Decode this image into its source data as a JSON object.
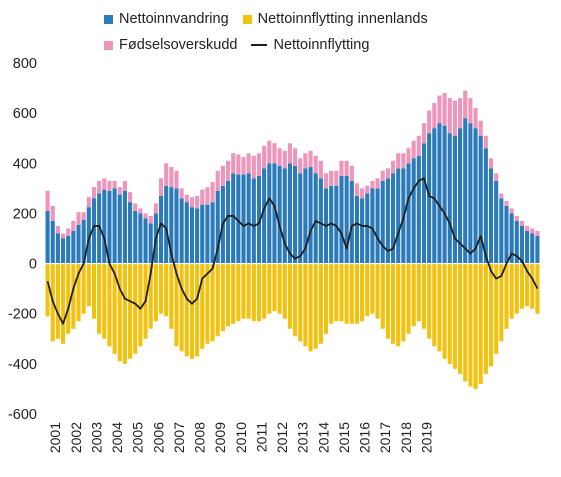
{
  "chart_data": {
    "type": "bar",
    "stacked": true,
    "x_axis_labels": [
      "2001",
      "2002",
      "2003",
      "2004",
      "2005",
      "2006",
      "2007",
      "2008",
      "2009",
      "2010",
      "2011",
      "2012",
      "2013",
      "2014",
      "2015",
      "2016",
      "2017",
      "2018",
      "2019"
    ],
    "x_start_year": 2001,
    "periods_per_year": 4,
    "ylim": [
      -600,
      800
    ],
    "yticks": [
      -600,
      -400,
      -200,
      0,
      200,
      400,
      600,
      800
    ],
    "grid": false,
    "legend_placement": "top",
    "series": [
      {
        "name": "Nettoinnvandring",
        "color": "#2b7bba",
        "type": "bar",
        "values": [
          210,
          170,
          120,
          100,
          110,
          130,
          155,
          175,
          225,
          260,
          280,
          295,
          290,
          300,
          275,
          290,
          245,
          210,
          200,
          180,
          160,
          200,
          270,
          310,
          305,
          300,
          260,
          245,
          225,
          220,
          235,
          235,
          245,
          290,
          310,
          330,
          360,
          355,
          355,
          360,
          340,
          350,
          380,
          400,
          400,
          390,
          380,
          400,
          390,
          360,
          380,
          385,
          360,
          340,
          300,
          310,
          310,
          350,
          350,
          330,
          270,
          260,
          280,
          300,
          300,
          330,
          340,
          360,
          380,
          380,
          400,
          420,
          430,
          480,
          520,
          540,
          560,
          550,
          520,
          510,
          540,
          580,
          560,
          540,
          510,
          460,
          380,
          330,
          260,
          230,
          200,
          170,
          150,
          130,
          120,
          110
        ]
      },
      {
        "name": "Nettoinnflytting innenlands",
        "color": "#f2c211",
        "type": "bar",
        "values": [
          -210,
          -310,
          -300,
          -320,
          -280,
          -260,
          -230,
          -200,
          -170,
          -220,
          -280,
          -300,
          -330,
          -360,
          -390,
          -400,
          -380,
          -360,
          -330,
          -300,
          -260,
          -230,
          -200,
          -210,
          -260,
          -330,
          -350,
          -370,
          -380,
          -370,
          -340,
          -320,
          -310,
          -290,
          -270,
          -250,
          -240,
          -230,
          -220,
          -220,
          -230,
          -230,
          -220,
          -200,
          -190,
          -200,
          -220,
          -260,
          -290,
          -310,
          -330,
          -350,
          -340,
          -320,
          -280,
          -240,
          -230,
          -230,
          -240,
          -240,
          -240,
          -230,
          -210,
          -200,
          -220,
          -260,
          -300,
          -320,
          -330,
          -310,
          -280,
          -250,
          -230,
          -260,
          -300,
          -330,
          -350,
          -380,
          -400,
          -420,
          -440,
          -470,
          -490,
          -500,
          -480,
          -440,
          -410,
          -360,
          -310,
          -260,
          -220,
          -200,
          -180,
          -170,
          -180,
          -200
        ]
      },
      {
        "name": "Fødselsoverskudd",
        "color": "#ee95bc",
        "type": "bar",
        "values": [
          80,
          60,
          30,
          20,
          30,
          40,
          50,
          30,
          40,
          45,
          50,
          45,
          40,
          30,
          30,
          40,
          40,
          30,
          20,
          20,
          30,
          40,
          70,
          90,
          80,
          70,
          40,
          30,
          40,
          50,
          60,
          70,
          80,
          80,
          80,
          80,
          80,
          80,
          70,
          80,
          90,
          90,
          90,
          90,
          80,
          70,
          70,
          80,
          70,
          60,
          60,
          65,
          70,
          70,
          60,
          60,
          60,
          60,
          60,
          60,
          50,
          40,
          30,
          30,
          40,
          40,
          40,
          50,
          60,
          60,
          60,
          70,
          80,
          80,
          90,
          100,
          110,
          130,
          140,
          140,
          120,
          110,
          100,
          80,
          60,
          50,
          40,
          30,
          20,
          20,
          20,
          20,
          20,
          20,
          20,
          20
        ]
      },
      {
        "name": "Nettoinnflytting",
        "color": "#1f1f1f",
        "type": "line",
        "values": [
          -70,
          -150,
          -200,
          -240,
          -180,
          -100,
          -40,
          0,
          100,
          150,
          150,
          100,
          0,
          -40,
          -100,
          -140,
          -150,
          -160,
          -180,
          -150,
          -40,
          100,
          160,
          140,
          40,
          -40,
          -100,
          -140,
          -160,
          -140,
          -60,
          -40,
          -20,
          60,
          160,
          190,
          190,
          170,
          150,
          160,
          150,
          160,
          220,
          260,
          230,
          150,
          80,
          40,
          20,
          30,
          60,
          130,
          170,
          160,
          150,
          160,
          150,
          120,
          60,
          150,
          160,
          150,
          150,
          140,
          100,
          70,
          50,
          60,
          120,
          180,
          260,
          300,
          330,
          340,
          270,
          260,
          230,
          200,
          160,
          100,
          80,
          60,
          40,
          60,
          110,
          30,
          -30,
          -60,
          -50,
          0,
          40,
          30,
          10,
          -30,
          -60,
          -100
        ]
      }
    ]
  }
}
